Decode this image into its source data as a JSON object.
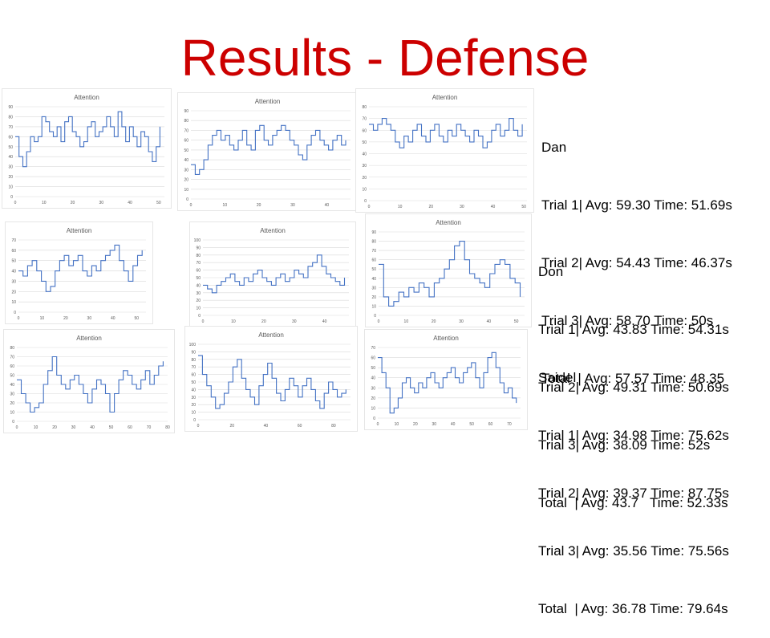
{
  "slide": {
    "title": "Results - Defense"
  },
  "colors": {
    "title": "#cc0000",
    "line": "#4472c4",
    "grid": "#d9d9d9",
    "axis_text": "#595959"
  },
  "stats": [
    {
      "name": "Dan",
      "lines": [
        "Trial 1| Avg: 59.30 Time: 51.69s",
        "Trial 2| Avg: 54.43 Time: 46.37s",
        "Trial 3| Avg: 58.70 Time: 50s",
        "Total  | Avg: 57.57 Time: 48.35"
      ]
    },
    {
      "name": "Don",
      "lines": [
        "Trial 1| Avg: 43.83 Time: 54.31s",
        "Trial 2| Avg: 49.31 Time: 50.69s",
        "Trial 3| Avg: 38.09 Time: 52s",
        "Total  | Avg: 43.7   Time: 52.33s"
      ]
    },
    {
      "name": "Saidel",
      "lines": [
        "Trial 1| Avg: 34.98 Time: 75.62s",
        "Trial 2| Avg: 39.37 Time: 87.75s",
        "Trial 3| Avg: 35.56 Time: 75.56s",
        "Total  | Avg: 36.78 Time: 79.64s"
      ]
    }
  ],
  "chart_data": [
    {
      "type": "line",
      "title": "Attention",
      "ylim": [
        0,
        90
      ],
      "yticks": [
        0,
        10,
        20,
        30,
        40,
        50,
        60,
        70,
        80,
        90
      ],
      "xlim": [
        0,
        52
      ],
      "xticks": [
        0,
        10,
        20,
        30,
        40,
        50
      ],
      "y": [
        60,
        40,
        30,
        45,
        60,
        55,
        60,
        80,
        75,
        65,
        60,
        70,
        55,
        75,
        80,
        65,
        60,
        50,
        55,
        70,
        75,
        60,
        65,
        70,
        80,
        70,
        60,
        85,
        70,
        55,
        70,
        60,
        50,
        65,
        60,
        45,
        35,
        50,
        70
      ]
    },
    {
      "type": "line",
      "title": "Attention",
      "ylim": [
        0,
        90
      ],
      "yticks": [
        0,
        10,
        20,
        30,
        40,
        50,
        60,
        70,
        80,
        90
      ],
      "xlim": [
        0,
        47
      ],
      "xticks": [
        0,
        10,
        20,
        30,
        40
      ],
      "y": [
        35,
        25,
        30,
        40,
        55,
        65,
        70,
        60,
        65,
        55,
        50,
        60,
        70,
        55,
        50,
        70,
        75,
        60,
        55,
        65,
        70,
        75,
        70,
        60,
        55,
        45,
        40,
        55,
        65,
        70,
        60,
        55,
        50,
        60,
        65,
        55,
        60
      ]
    },
    {
      "type": "line",
      "title": "Attention",
      "ylim": [
        0,
        80
      ],
      "yticks": [
        0,
        10,
        20,
        30,
        40,
        50,
        60,
        70,
        80
      ],
      "xlim": [
        0,
        51
      ],
      "xticks": [
        0,
        10,
        20,
        30,
        40,
        50
      ],
      "y": [
        65,
        60,
        65,
        70,
        65,
        60,
        50,
        45,
        55,
        50,
        60,
        65,
        55,
        50,
        60,
        65,
        55,
        50,
        60,
        55,
        65,
        60,
        55,
        50,
        60,
        55,
        45,
        50,
        60,
        65,
        55,
        60,
        70,
        60,
        55,
        65
      ]
    },
    {
      "type": "line",
      "title": "Attention",
      "ylim": [
        0,
        70
      ],
      "yticks": [
        0,
        10,
        20,
        30,
        40,
        50,
        60,
        70
      ],
      "xlim": [
        0,
        54
      ],
      "xticks": [
        0,
        10,
        20,
        30,
        40,
        50
      ],
      "y": [
        40,
        35,
        45,
        50,
        40,
        30,
        20,
        25,
        40,
        50,
        55,
        45,
        50,
        55,
        40,
        35,
        45,
        40,
        50,
        55,
        60,
        65,
        50,
        40,
        30,
        45,
        55,
        60
      ]
    },
    {
      "type": "line",
      "title": "Attention",
      "ylim": [
        0,
        100
      ],
      "yticks": [
        0,
        10,
        20,
        30,
        40,
        50,
        60,
        70,
        80,
        90,
        100
      ],
      "xlim": [
        0,
        48
      ],
      "xticks": [
        0,
        10,
        20,
        30,
        40
      ],
      "y": [
        40,
        35,
        30,
        40,
        45,
        50,
        55,
        45,
        40,
        50,
        45,
        55,
        60,
        50,
        45,
        40,
        50,
        55,
        45,
        50,
        60,
        55,
        50,
        65,
        70,
        80,
        65,
        55,
        50,
        45,
        40,
        50
      ]
    },
    {
      "type": "line",
      "title": "Attention",
      "ylim": [
        0,
        90
      ],
      "yticks": [
        0,
        10,
        20,
        30,
        40,
        50,
        60,
        70,
        80,
        90
      ],
      "xlim": [
        0,
        53
      ],
      "xticks": [
        0,
        10,
        20,
        30,
        40,
        50
      ],
      "y": [
        55,
        20,
        10,
        15,
        25,
        20,
        30,
        25,
        35,
        30,
        20,
        35,
        40,
        50,
        60,
        75,
        80,
        60,
        45,
        40,
        35,
        30,
        45,
        55,
        60,
        55,
        40,
        35,
        20
      ]
    },
    {
      "type": "line",
      "title": "Attention",
      "ylim": [
        0,
        80
      ],
      "yticks": [
        0,
        10,
        20,
        30,
        40,
        50,
        60,
        70,
        80
      ],
      "xlim": [
        0,
        80
      ],
      "xticks": [
        0,
        10,
        20,
        30,
        40,
        50,
        60,
        70,
        80
      ],
      "y": [
        45,
        30,
        20,
        10,
        15,
        20,
        40,
        55,
        70,
        50,
        40,
        35,
        45,
        50,
        40,
        30,
        20,
        35,
        45,
        40,
        30,
        10,
        30,
        45,
        55,
        50,
        40,
        35,
        45,
        55,
        40,
        50,
        60,
        65
      ]
    },
    {
      "type": "line",
      "title": "Attention",
      "ylim": [
        0,
        100
      ],
      "yticks": [
        0,
        10,
        20,
        30,
        40,
        50,
        60,
        70,
        80,
        90,
        100
      ],
      "xlim": [
        0,
        90
      ],
      "xticks": [
        0,
        20,
        40,
        60,
        80
      ],
      "y": [
        85,
        60,
        45,
        30,
        15,
        20,
        35,
        50,
        70,
        80,
        55,
        40,
        30,
        20,
        45,
        60,
        75,
        55,
        35,
        25,
        40,
        55,
        45,
        30,
        45,
        55,
        40,
        25,
        15,
        35,
        50,
        40,
        30,
        35,
        40
      ]
    },
    {
      "type": "line",
      "title": "Attention",
      "ylim": [
        0,
        70
      ],
      "yticks": [
        0,
        10,
        20,
        30,
        40,
        50,
        60,
        70
      ],
      "xlim": [
        0,
        76
      ],
      "xticks": [
        0,
        10,
        20,
        30,
        40,
        50,
        60,
        70
      ],
      "y": [
        60,
        45,
        30,
        5,
        10,
        20,
        35,
        40,
        30,
        25,
        35,
        30,
        40,
        45,
        35,
        30,
        40,
        45,
        50,
        40,
        35,
        45,
        50,
        55,
        40,
        30,
        45,
        60,
        65,
        50,
        35,
        25,
        30,
        20,
        15
      ]
    }
  ]
}
